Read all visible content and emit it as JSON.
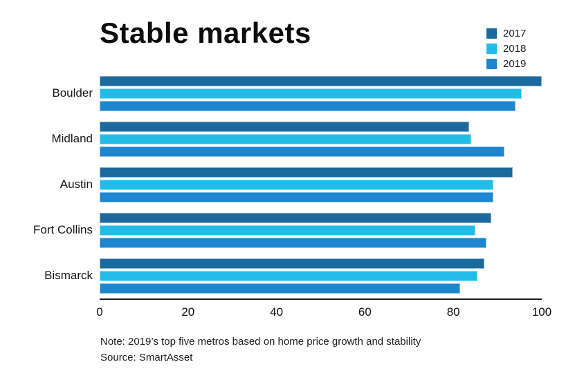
{
  "title": "Stable markets",
  "chart_data": {
    "type": "bar",
    "orientation": "horizontal",
    "title": "Stable markets",
    "categories": [
      "Boulder",
      "Midland",
      "Austin",
      "Fort Collins",
      "Bismarck"
    ],
    "series": [
      {
        "name": "2017",
        "color": "#1c699e",
        "values": [
          100,
          83.5,
          93.5,
          88.5,
          87
        ]
      },
      {
        "name": "2018",
        "color": "#21bde8",
        "values": [
          95.5,
          84,
          89,
          85,
          85.5
        ]
      },
      {
        "name": "2019",
        "color": "#1e86cf",
        "values": [
          94,
          91.5,
          89,
          87.5,
          81.5
        ]
      }
    ],
    "xlim": [
      0,
      100
    ],
    "xticks": [
      0,
      20,
      40,
      60,
      80,
      100
    ],
    "xlabel": "",
    "ylabel": "",
    "grid": false,
    "legend_position": "top-right",
    "axis_line_color": "#1f1f1f"
  },
  "note": {
    "line1": "Note: 2019’s top five metros based on home price growth and stability",
    "line2": "Source: SmartAsset"
  }
}
